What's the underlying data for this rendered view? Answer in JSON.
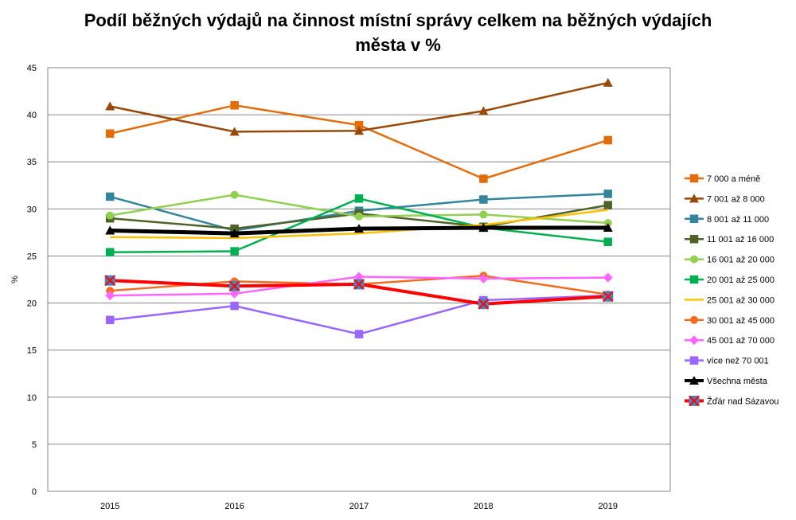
{
  "chart_data": {
    "type": "line",
    "title_line1": "Podíl běžných výdajů na činnost místní správy celkem na běžných výdajích",
    "title_line2": "města v %",
    "xlabel": "",
    "ylabel": "%",
    "ylim": [
      0,
      45
    ],
    "yticks": [
      0,
      5,
      10,
      15,
      20,
      25,
      30,
      35,
      40,
      45
    ],
    "grid": true,
    "legend_position": "right",
    "x": [
      "2015",
      "2016",
      "2017",
      "2018",
      "2019"
    ],
    "series": [
      {
        "name": "7 000 a méně",
        "color": "#E46C0A",
        "marker": "square",
        "width": 2.5,
        "values": [
          38.0,
          41.0,
          38.9,
          33.2,
          37.3
        ]
      },
      {
        "name": "7 001 až 8 000",
        "color": "#984807",
        "marker": "triangle",
        "width": 2.5,
        "values": [
          40.9,
          38.2,
          38.3,
          40.4,
          43.4
        ]
      },
      {
        "name": "8 001 až 11 000",
        "color": "#31859C",
        "marker": "square",
        "width": 2.5,
        "values": [
          31.3,
          27.7,
          29.8,
          31.0,
          31.6
        ]
      },
      {
        "name": "11 001 až 16 000",
        "color": "#4F6228",
        "marker": "square",
        "width": 2.5,
        "values": [
          29.0,
          27.9,
          29.5,
          28.1,
          30.4
        ]
      },
      {
        "name": "16 001 až 20 000",
        "color": "#92D050",
        "marker": "circle",
        "width": 2.5,
        "values": [
          29.3,
          31.5,
          29.2,
          29.4,
          28.5
        ]
      },
      {
        "name": "20 001 až 25 000",
        "color": "#00B050",
        "marker": "square",
        "width": 2.5,
        "values": [
          25.4,
          25.5,
          31.1,
          28.0,
          26.5
        ]
      },
      {
        "name": "25 001 až 30 000",
        "color": "#FFC000",
        "marker": "none",
        "width": 2.5,
        "values": [
          27.0,
          26.9,
          27.4,
          28.3,
          29.9
        ]
      },
      {
        "name": "30 001 až 45 000",
        "color": "#F36C21",
        "marker": "circle",
        "width": 2.5,
        "values": [
          21.3,
          22.3,
          22.0,
          22.9,
          20.9
        ]
      },
      {
        "name": "45 001 až 70 000",
        "color": "#FF66FF",
        "marker": "diamond",
        "width": 2.5,
        "values": [
          20.8,
          21.0,
          22.8,
          22.6,
          22.7
        ]
      },
      {
        "name": "více než 70 001",
        "color": "#9966FF",
        "marker": "square",
        "width": 2.5,
        "values": [
          18.2,
          19.7,
          16.7,
          20.3,
          20.8
        ]
      },
      {
        "name": "Všechna města",
        "color": "#000000",
        "marker": "triangle",
        "width": 5,
        "values": [
          27.7,
          27.4,
          27.9,
          28.0,
          28.0
        ]
      },
      {
        "name": "Žďár nad Sázavou",
        "color": "#FF0000",
        "marker": "x-square",
        "width": 4,
        "values": [
          22.4,
          21.8,
          22.0,
          19.9,
          20.7
        ]
      }
    ]
  }
}
